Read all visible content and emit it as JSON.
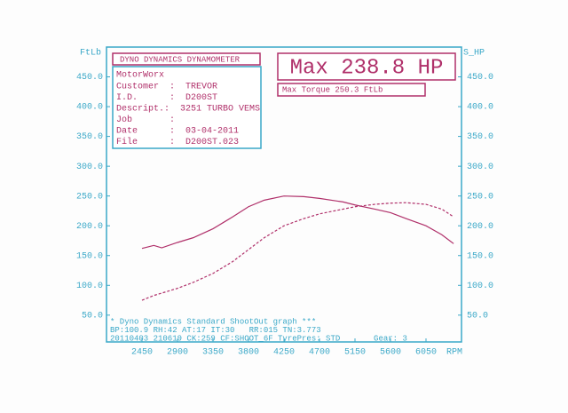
{
  "chart_data": {
    "type": "line",
    "y_label": "FtLb",
    "y2_label": "S_HP",
    "x_label": "RPM",
    "x": [
      2450,
      2600,
      2700,
      2900,
      3100,
      3350,
      3600,
      3800,
      4000,
      4250,
      4500,
      4700,
      5000,
      5150,
      5400,
      5600,
      5800,
      6050,
      6250,
      6400
    ],
    "series": [
      {
        "color": "#b0306a",
        "dashed": false,
        "axis": "y",
        "values": [
          162,
          167,
          163,
          172,
          180,
          195,
          215,
          232,
          243,
          250,
          249,
          246,
          240,
          235,
          228,
          222,
          212,
          200,
          185,
          170
        ]
      },
      {
        "color": "#b0306a",
        "dashed": true,
        "axis": "y2",
        "values": [
          75,
          83,
          87,
          95,
          105,
          120,
          140,
          160,
          180,
          200,
          212,
          220,
          228,
          232,
          236,
          238,
          238.8,
          236,
          228,
          215
        ]
      }
    ],
    "xlim": [
      2000,
      6500
    ],
    "xticks": [
      2450,
      2900,
      3350,
      3800,
      4250,
      4700,
      5150,
      5600,
      6050
    ],
    "ylim": [
      5,
      500
    ],
    "yticks": [
      {
        "value": 50,
        "label": "50.0"
      },
      {
        "value": 100,
        "label": "100.0"
      },
      {
        "value": 150,
        "label": "150.0"
      },
      {
        "value": 200,
        "label": "200.0"
      },
      {
        "value": 250,
        "label": "250.0"
      },
      {
        "value": 300,
        "label": "300.0"
      },
      {
        "value": 350,
        "label": "350.0"
      },
      {
        "value": 400,
        "label": "400.0"
      },
      {
        "value": 450,
        "label": "450.0"
      }
    ],
    "y2lim": [
      5,
      500
    ],
    "y2ticks": [
      {
        "value": 50,
        "label": "50.0"
      },
      {
        "value": 100,
        "label": "100.0"
      },
      {
        "value": 150,
        "label": "150.0"
      },
      {
        "value": 200,
        "label": "200.0"
      },
      {
        "value": 250,
        "label": "250.0"
      },
      {
        "value": 300,
        "label": "300.0"
      },
      {
        "value": 350,
        "label": "350.0"
      },
      {
        "value": 400,
        "label": "400.0"
      },
      {
        "value": 450,
        "label": "450.0"
      }
    ],
    "grid": false
  },
  "info_box": {
    "header": "DYNO DYNAMICS DYNAMOMETER",
    "company": "MotorWorx",
    "rows": [
      "Customer  :  TREVOR",
      "I.D.      :  D200ST",
      "Descript.:  3251 TURBO VEMS",
      "Job       :",
      "Date      :  03-04-2011",
      "File      :  D200ST.023"
    ]
  },
  "max_box": {
    "max_hp": "Max 238.8 HP",
    "max_torque": "Max Torque 250.3 FtLb"
  },
  "footer": [
    "* Dyno Dynamics Standard ShootOut graph ***",
    "BP:100.9 RH:42 AT:17 IT:30   RR:015 TN:3.773",
    "20110403 210619 CK:259 CF:SHOOT_6F TyrePres: STD       Gear: 3"
  ]
}
